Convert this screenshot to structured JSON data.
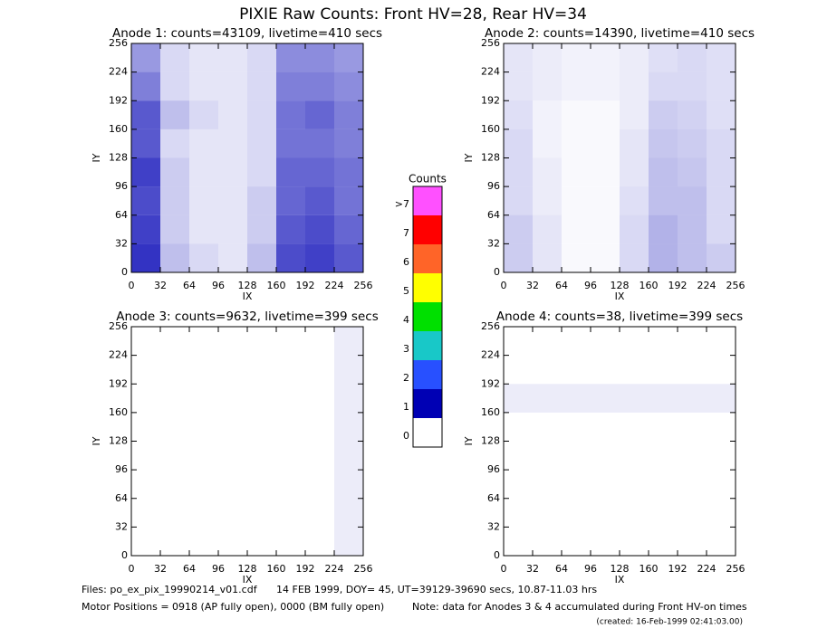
{
  "page": {
    "title": "PIXIE Raw Counts:  Front HV=28, Rear HV=34",
    "footer_files": "Files: po_ex_pix_19990214_v01.cdf",
    "footer_date": "14 FEB 1999, DOY= 45, UT=39129-39690 secs, 10.87-11.03 hrs",
    "footer_motor": "Motor Positions = 0918 (AP fully open), 0000 (BM fully open)",
    "footer_note": "Note: data for Anodes 3 & 4 accumulated during Front HV-on times",
    "footer_created": "(created: 16-Feb-1999 02:41:03.00)"
  },
  "colorbar": {
    "title": "Counts",
    "labels": [
      "0",
      "1",
      "2",
      "3",
      "4",
      "5",
      "6",
      "7",
      ">7"
    ],
    "colors": [
      "#ffffff",
      "#0000b4",
      "#2850ff",
      "#18c8c8",
      "#00e000",
      "#ffff00",
      "#ff6428",
      "#ff0000",
      "#ff50ff"
    ]
  },
  "chart_data": [
    {
      "type": "heatmap",
      "title": "Anode 1: counts=43109, livetime=410 secs",
      "xlabel": "IX",
      "ylabel": "IY",
      "xlim": [
        0,
        256
      ],
      "ylim": [
        0,
        256
      ],
      "zlim": [
        0,
        2
      ],
      "color": "#0000b4",
      "xticks": [
        0,
        32,
        64,
        96,
        128,
        160,
        192,
        224,
        256
      ],
      "yticks": [
        0,
        32,
        64,
        96,
        128,
        160,
        192,
        224,
        256
      ],
      "xbins": [
        0,
        32,
        64,
        96,
        128,
        160,
        192,
        224,
        256
      ],
      "ybins": [
        0,
        32,
        64,
        96,
        128,
        160,
        192,
        224,
        256
      ],
      "z": [
        [
          1.6,
          0.5,
          0.3,
          0.2,
          0.5,
          1.4,
          1.5,
          1.3
        ],
        [
          1.5,
          0.4,
          0.2,
          0.2,
          0.4,
          1.3,
          1.4,
          1.2
        ],
        [
          1.4,
          0.4,
          0.2,
          0.2,
          0.4,
          1.2,
          1.3,
          1.1
        ],
        [
          1.5,
          0.4,
          0.2,
          0.2,
          0.3,
          1.2,
          1.2,
          1.1
        ],
        [
          1.3,
          0.3,
          0.2,
          0.2,
          0.3,
          1.1,
          1.1,
          1.0
        ],
        [
          1.3,
          0.5,
          0.3,
          0.2,
          0.3,
          1.1,
          1.2,
          1.0
        ],
        [
          1.0,
          0.3,
          0.2,
          0.2,
          0.3,
          1.0,
          1.0,
          0.9
        ],
        [
          0.8,
          0.3,
          0.2,
          0.2,
          0.3,
          0.9,
          0.9,
          0.8
        ]
      ]
    },
    {
      "type": "heatmap",
      "title": "Anode 2: counts=14390, livetime=410 secs",
      "xlabel": "IX",
      "ylabel": "IY",
      "xlim": [
        0,
        256
      ],
      "ylim": [
        0,
        256
      ],
      "zlim": [
        0,
        2
      ],
      "color": "#0000b4",
      "xticks": [
        0,
        32,
        64,
        96,
        128,
        160,
        192,
        224,
        256
      ],
      "yticks": [
        0,
        32,
        64,
        96,
        128,
        160,
        192,
        224,
        256
      ],
      "xbins": [
        0,
        32,
        64,
        96,
        128,
        160,
        192,
        224,
        256
      ],
      "ybins": [
        0,
        32,
        64,
        96,
        128,
        160,
        192,
        224,
        256
      ],
      "z": [
        [
          0.4,
          0.2,
          0.05,
          0.05,
          0.3,
          0.6,
          0.5,
          0.4
        ],
        [
          0.4,
          0.2,
          0.05,
          0.05,
          0.3,
          0.6,
          0.5,
          0.3
        ],
        [
          0.3,
          0.15,
          0.05,
          0.05,
          0.25,
          0.5,
          0.5,
          0.3
        ],
        [
          0.3,
          0.15,
          0.05,
          0.05,
          0.2,
          0.5,
          0.45,
          0.3
        ],
        [
          0.3,
          0.1,
          0.05,
          0.05,
          0.2,
          0.45,
          0.4,
          0.3
        ],
        [
          0.25,
          0.1,
          0.05,
          0.05,
          0.15,
          0.4,
          0.35,
          0.25
        ],
        [
          0.2,
          0.15,
          0.1,
          0.1,
          0.15,
          0.3,
          0.3,
          0.25
        ],
        [
          0.2,
          0.15,
          0.1,
          0.1,
          0.15,
          0.25,
          0.3,
          0.25
        ]
      ]
    },
    {
      "type": "heatmap",
      "title": "Anode 3: counts=9632, livetime=399 secs",
      "xlabel": "IX",
      "ylabel": "IY",
      "xlim": [
        0,
        256
      ],
      "ylim": [
        0,
        256
      ],
      "zlim": [
        0,
        2
      ],
      "color": "#0000b4",
      "xticks": [
        0,
        32,
        64,
        96,
        128,
        160,
        192,
        224,
        256
      ],
      "yticks": [
        0,
        32,
        64,
        96,
        128,
        160,
        192,
        224,
        256
      ],
      "xbins": [
        0,
        32,
        64,
        96,
        128,
        160,
        192,
        224,
        256
      ],
      "ybins": [
        0,
        32,
        64,
        96,
        128,
        160,
        192,
        224,
        256
      ],
      "z": [
        [
          0,
          0,
          0,
          0,
          0,
          0,
          0,
          0.15
        ],
        [
          0,
          0,
          0,
          0,
          0,
          0,
          0,
          0.15
        ],
        [
          0,
          0,
          0,
          0,
          0,
          0,
          0,
          0.15
        ],
        [
          0,
          0,
          0,
          0,
          0,
          0,
          0,
          0.15
        ],
        [
          0,
          0,
          0,
          0,
          0,
          0,
          0,
          0.15
        ],
        [
          0,
          0,
          0,
          0,
          0,
          0,
          0,
          0.15
        ],
        [
          0,
          0,
          0,
          0,
          0,
          0,
          0,
          0.15
        ],
        [
          0,
          0,
          0,
          0,
          0,
          0,
          0,
          0.15
        ]
      ]
    },
    {
      "type": "heatmap",
      "title": "Anode 4: counts=38, livetime=399 secs",
      "xlabel": "IX",
      "ylabel": "IY",
      "xlim": [
        0,
        256
      ],
      "ylim": [
        0,
        256
      ],
      "zlim": [
        0,
        2
      ],
      "color": "#0000b4",
      "xticks": [
        0,
        32,
        64,
        96,
        128,
        160,
        192,
        224,
        256
      ],
      "yticks": [
        0,
        32,
        64,
        96,
        128,
        160,
        192,
        224,
        256
      ],
      "xbins": [
        0,
        32,
        64,
        96,
        128,
        160,
        192,
        224,
        256
      ],
      "ybins": [
        0,
        32,
        64,
        96,
        128,
        160,
        192,
        224,
        256
      ],
      "z": [
        [
          0,
          0,
          0,
          0,
          0,
          0,
          0,
          0
        ],
        [
          0,
          0,
          0,
          0,
          0,
          0,
          0,
          0
        ],
        [
          0,
          0,
          0,
          0,
          0,
          0,
          0,
          0
        ],
        [
          0,
          0,
          0,
          0,
          0,
          0,
          0,
          0
        ],
        [
          0,
          0,
          0,
          0,
          0,
          0,
          0,
          0
        ],
        [
          0.15,
          0.15,
          0.15,
          0.15,
          0.15,
          0.15,
          0.15,
          0.15
        ],
        [
          0,
          0,
          0,
          0,
          0,
          0,
          0,
          0
        ],
        [
          0,
          0,
          0,
          0,
          0,
          0,
          0,
          0
        ]
      ]
    }
  ]
}
